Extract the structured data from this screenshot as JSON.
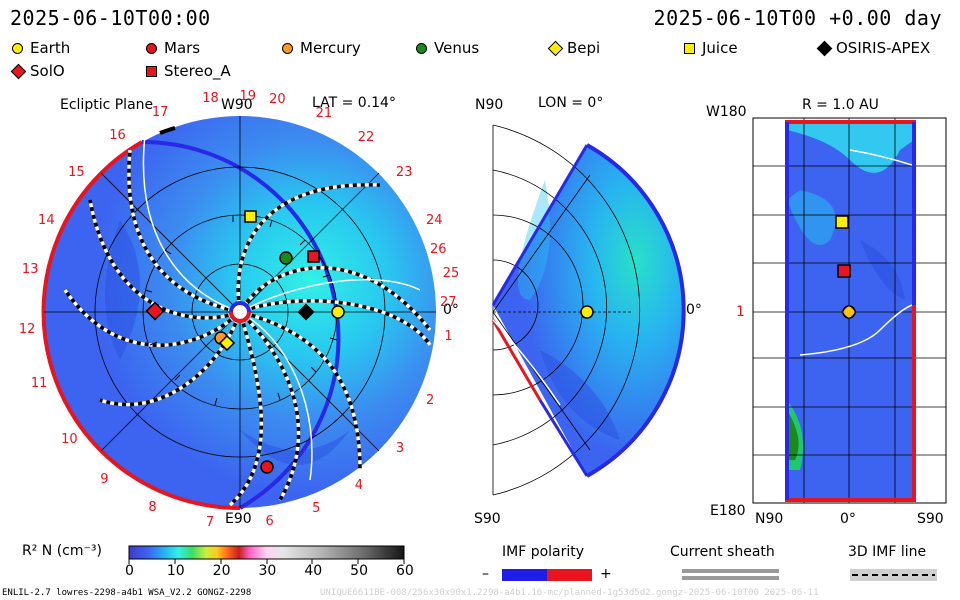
{
  "header": {
    "left_time": "2025-06-10T00:00",
    "right_time": "2025-06-10T00 +0.00 day"
  },
  "legend": [
    {
      "name": "Earth",
      "color": "#ffee00",
      "shape": "circle"
    },
    {
      "name": "Mars",
      "color": "#e8141e",
      "shape": "circle"
    },
    {
      "name": "Mercury",
      "color": "#ff9a1e",
      "shape": "circle"
    },
    {
      "name": "Venus",
      "color": "#1a8a1a",
      "shape": "circle"
    },
    {
      "name": "Bepi",
      "color": "#ffee00",
      "shape": "diamond"
    },
    {
      "name": "Juice",
      "color": "#ffee00",
      "shape": "square"
    },
    {
      "name": "OSIRIS-APEX",
      "color": "#000000",
      "shape": "diamond"
    },
    {
      "name": "SolO",
      "color": "#e8141e",
      "shape": "diamond"
    },
    {
      "name": "Stereo_A",
      "color": "#e8141e",
      "shape": "square"
    }
  ],
  "panel1": {
    "title": "Ecliptic Plane",
    "top_label": "W90",
    "lat": "LAT = 0.14°",
    "right_label": "0°",
    "bottom_label": "E90",
    "ticks": [
      "1",
      "2",
      "3",
      "4",
      "5",
      "6",
      "7",
      "8",
      "9",
      "10",
      "11",
      "12",
      "13",
      "14",
      "15",
      "16",
      "17",
      "18",
      "19",
      "20",
      "21",
      "22",
      "23",
      "24",
      "25",
      "26",
      "27"
    ]
  },
  "panel2": {
    "top_left": "N90",
    "lon": "LON = 0°",
    "right_label": "0°",
    "bottom_left": "S90"
  },
  "panel3": {
    "top_left": "W180",
    "r": "R = 1.0 AU",
    "left_mid": "1",
    "bottom_left": "E180",
    "x_left": "N90",
    "x_mid": "0°",
    "x_right": "S90"
  },
  "colorbar": {
    "label": "R² N (cm⁻³)",
    "ticks": [
      "0",
      "10",
      "20",
      "30",
      "40",
      "50",
      "60"
    ]
  },
  "imf": {
    "title": "IMF polarity",
    "minus": "–",
    "plus": "+"
  },
  "sheath": {
    "title": "Current sheath"
  },
  "imf3d": {
    "title": "3D IMF line"
  },
  "footer": {
    "left": "ENLIL-2.7 lowres-2298-a4b1 WSA_V2.2 GONGZ-2298",
    "right": "UNIQUE6611BE-008/256x30x90x1.2298-a4b1.16-mc/planned-1g53d5d2.gongz-2025-06-10T00 2025-06-11"
  },
  "colors": {
    "accent_red": "#e8141e",
    "bg_blue": "#3c64f0",
    "cyan": "#32f0e6",
    "green": "#1ec86e"
  }
}
